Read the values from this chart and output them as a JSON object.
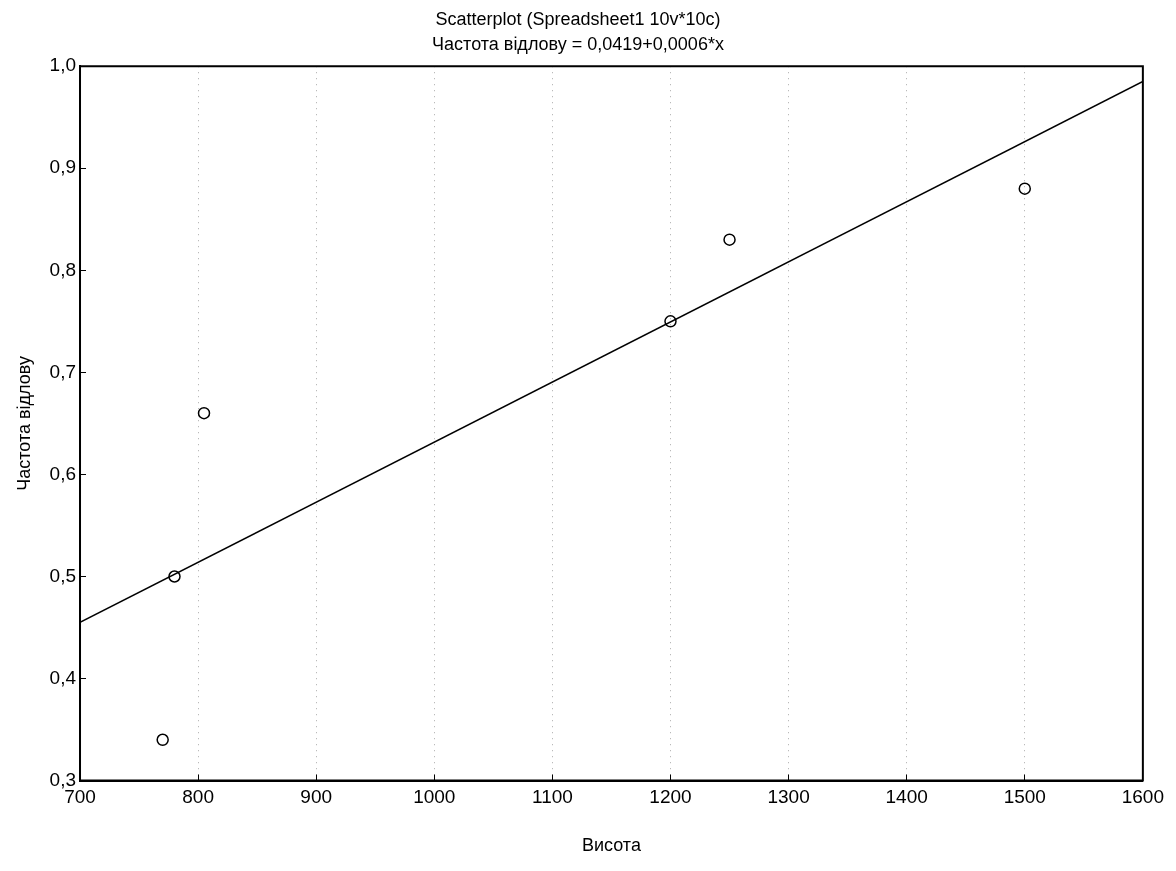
{
  "chart_data": {
    "type": "scatter",
    "title": "Scatterplot (Spreadsheet1 10v*10c)",
    "subtitle": "Частота відлову = 0,0419+0,0006*x",
    "xlabel": "Висота",
    "ylabel": "Частота відлову",
    "series": [
      {
        "type": "scatter",
        "color": "#000000",
        "x": [
          770,
          780,
          805,
          1200,
          1250,
          1500
        ],
        "values": [
          0.34,
          0.5,
          0.66,
          0.75,
          0.83,
          0.88
        ],
        "marker": "circle"
      },
      {
        "type": "line",
        "color": "#000000",
        "x": [
          700,
          1600
        ],
        "values": [
          0.455,
          0.985
        ],
        "marker": "none",
        "line_style": "solid"
      }
    ],
    "xlim": [
      700,
      1600
    ],
    "xticks": [
      700,
      800,
      900,
      1000,
      1100,
      1200,
      1300,
      1400,
      1500,
      1600
    ],
    "ylim": [
      0.3,
      1.0
    ],
    "yticks": [
      {
        "value": 0.3,
        "label": "0,3"
      },
      {
        "value": 0.4,
        "label": "0,4"
      },
      {
        "value": 0.5,
        "label": "0,5"
      },
      {
        "value": 0.6,
        "label": "0,6"
      },
      {
        "value": 0.7,
        "label": "0,7"
      },
      {
        "value": 0.8,
        "label": "0,8"
      },
      {
        "value": 0.9,
        "label": "0,9"
      },
      {
        "value": 1.0,
        "label": "1,0"
      }
    ],
    "grid": "x",
    "legend": false
  }
}
